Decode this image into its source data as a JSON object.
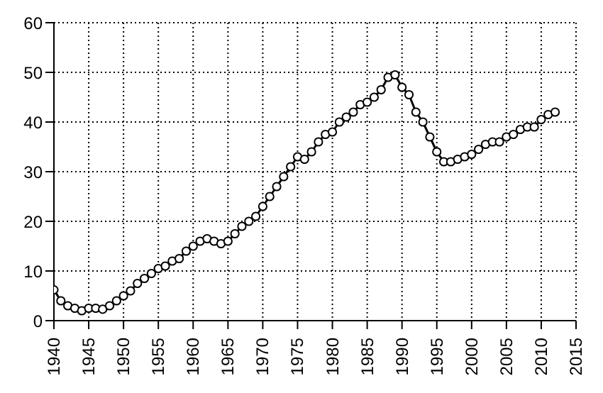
{
  "chart_data": {
    "type": "line",
    "x": [
      1940,
      1941,
      1942,
      1943,
      1944,
      1945,
      1946,
      1947,
      1948,
      1949,
      1950,
      1951,
      1952,
      1953,
      1954,
      1955,
      1956,
      1957,
      1958,
      1959,
      1960,
      1961,
      1962,
      1963,
      1964,
      1965,
      1966,
      1967,
      1968,
      1969,
      1970,
      1971,
      1972,
      1973,
      1974,
      1975,
      1976,
      1977,
      1978,
      1979,
      1980,
      1981,
      1982,
      1983,
      1984,
      1985,
      1986,
      1987,
      1988,
      1989,
      1990,
      1991,
      1992,
      1993,
      1994,
      1995,
      1996,
      1997,
      1998,
      1999,
      2000,
      2001,
      2002,
      2003,
      2004,
      2005,
      2006,
      2007,
      2008,
      2009,
      2010,
      2011,
      2012
    ],
    "series": [
      {
        "color": "#000000",
        "values": [
          6.2,
          4,
          3,
          2.5,
          2,
          2.5,
          2.5,
          2.3,
          3,
          4,
          5,
          6,
          7.5,
          8.5,
          9.5,
          10.5,
          11,
          12,
          12.5,
          14,
          15,
          16,
          16.5,
          16,
          15.5,
          16,
          17.5,
          19,
          20,
          21,
          23,
          25,
          27,
          29,
          31,
          33,
          32.5,
          34,
          36,
          37.5,
          38,
          40,
          41,
          42,
          43.5,
          44,
          45,
          46.5,
          49,
          49.5,
          47,
          45.5,
          42,
          40,
          37,
          34,
          32,
          32,
          32.5,
          33,
          33.5,
          34.5,
          35.5,
          36,
          36,
          37,
          37.5,
          38.5,
          39,
          39,
          40.5,
          41.5,
          42
        ]
      }
    ],
    "xlim": [
      1940,
      2015
    ],
    "xticks": [
      1940,
      1945,
      1950,
      1955,
      1960,
      1965,
      1970,
      1975,
      1980,
      1985,
      1990,
      1995,
      2000,
      2005,
      2010,
      2015
    ],
    "ylim": [
      0,
      60
    ],
    "yticks": [
      0,
      10,
      20,
      30,
      40,
      50,
      60
    ],
    "grid": true,
    "marker": "circle",
    "line_style": "solid"
  }
}
